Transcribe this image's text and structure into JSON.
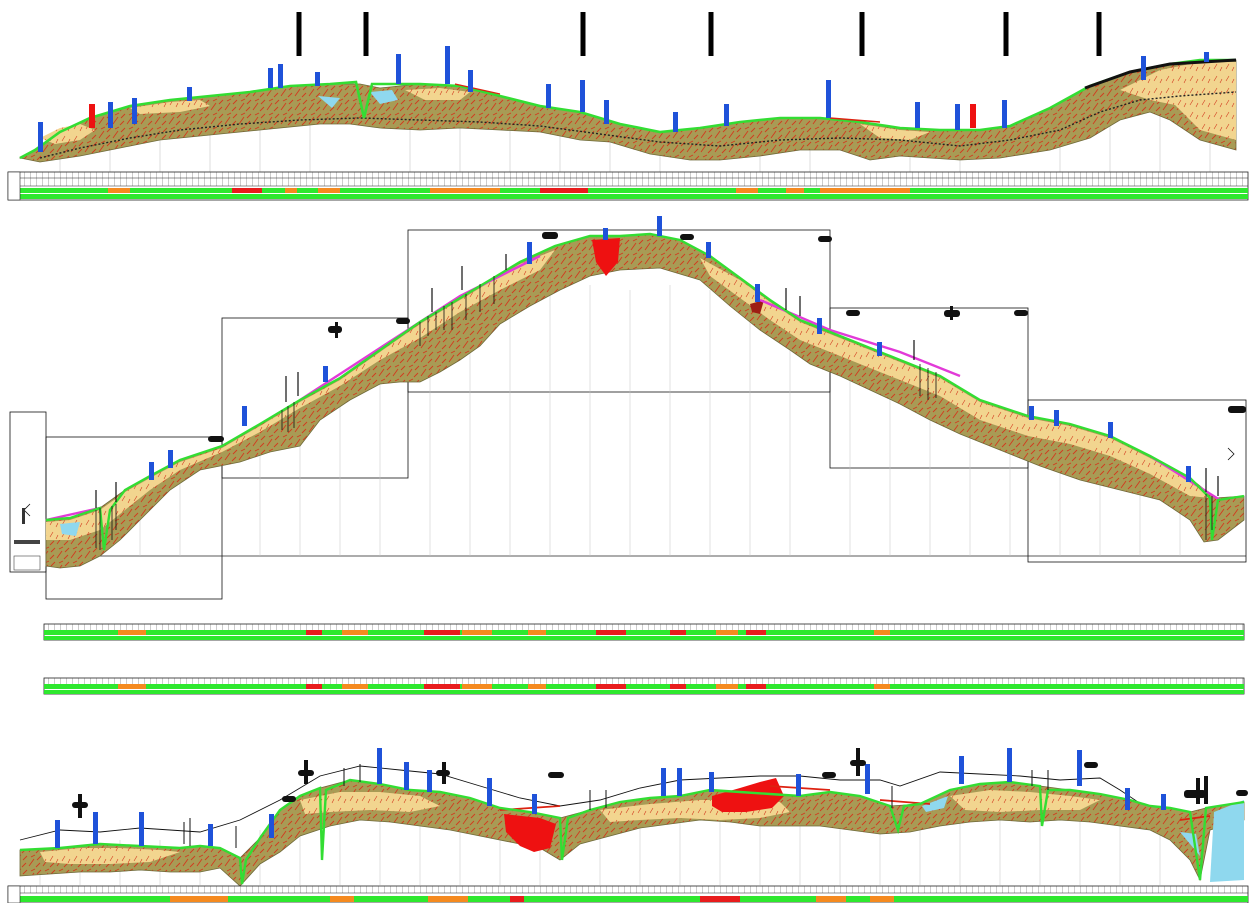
{
  "drawing": {
    "type": "geological longitudinal profile sheet",
    "panels": [
      {
        "id": "profile-top",
        "kind": "profile with stratigraphy",
        "has_band_table": true
      },
      {
        "id": "profile-middle",
        "kind": "stepped profile with stratigraphy",
        "has_band_table": false
      },
      {
        "id": "band-strip-a",
        "kind": "attribute band strip"
      },
      {
        "id": "band-strip-b",
        "kind": "attribute band strip"
      },
      {
        "id": "profile-bottom",
        "kind": "profile with stratigraphy",
        "has_band_table": true
      }
    ],
    "legend_colors": {
      "ground_surface": "#33dd33",
      "weathered_rock": "#a89b55",
      "fissures": "#d23a1e",
      "sand_silt": "#f2d58f",
      "water_body": "#8fd8ee",
      "alluvial_red_zone": "#ee1111",
      "design_grade": "#e23ad8",
      "borehole": "#1f52d9",
      "band_good": "#2ee82e",
      "band_medium": "#f58a1f",
      "band_poor": "#e81c1c"
    },
    "symbols": [
      "borehole-icon",
      "marker-post-icon",
      "section-flag-icon",
      "orientation-triangle-icon"
    ]
  }
}
